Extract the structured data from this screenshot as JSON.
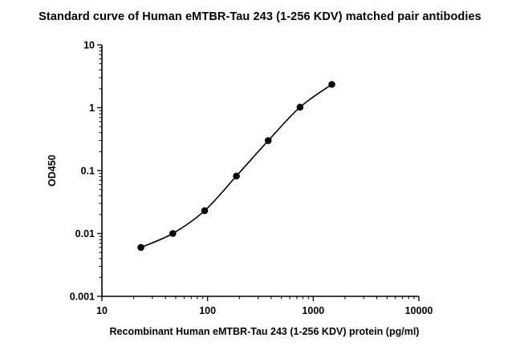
{
  "chart_data": {
    "type": "scatter",
    "title": "Standard curve of Human eMTBR-Tau 243 (1-256 KDV) matched pair antibodies",
    "xlabel": "Recombinant Human eMTBR-Tau 243 (1-256 KDV) protein (pg/ml)",
    "ylabel": "OD450",
    "xscale": "log",
    "yscale": "log",
    "xlim": [
      10,
      10000
    ],
    "ylim": [
      0.001,
      10
    ],
    "xticks": [
      "10",
      "100",
      "1000",
      "10000"
    ],
    "yticks": [
      "0.001",
      "0.01",
      "0.1",
      "1",
      "10"
    ],
    "grid": false,
    "series": [
      {
        "x": [
          23.4,
          46.9,
          93.8,
          187.5,
          375,
          750,
          1500
        ],
        "y": [
          0.006,
          0.01,
          0.023,
          0.082,
          0.3,
          1.02,
          2.35
        ],
        "fit_curve": true,
        "color": "#000000"
      }
    ]
  }
}
